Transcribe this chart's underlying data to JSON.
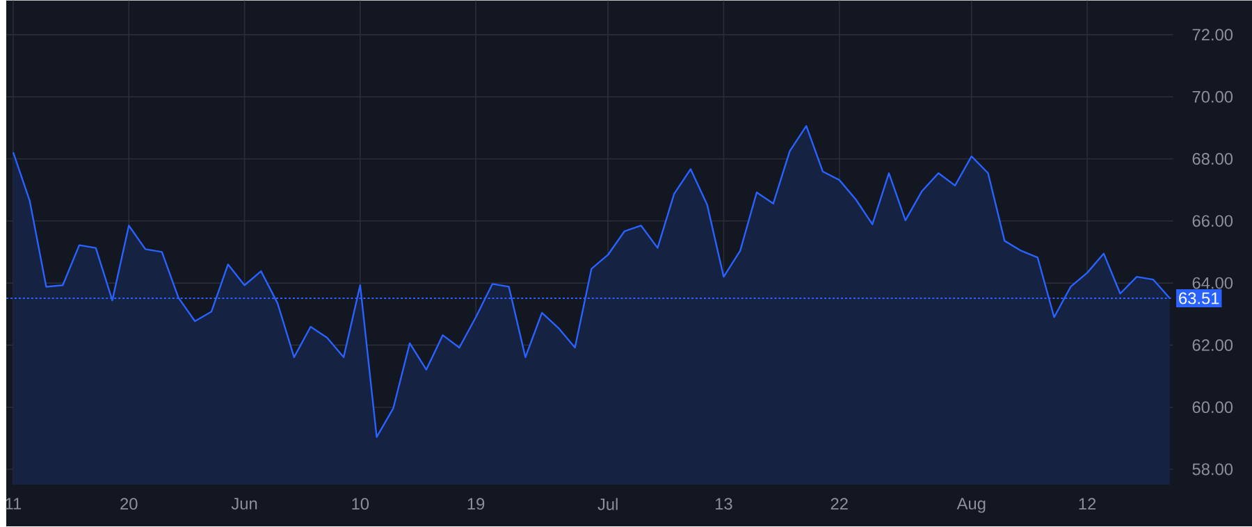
{
  "chart_data": {
    "type": "area",
    "categories": [
      "11",
      null,
      null,
      null,
      null,
      null,
      null,
      "20",
      null,
      null,
      null,
      null,
      null,
      null,
      "Jun",
      null,
      null,
      null,
      null,
      null,
      null,
      "10",
      null,
      null,
      null,
      null,
      null,
      null,
      "19",
      null,
      null,
      null,
      null,
      null,
      null,
      null,
      "Jul",
      null,
      null,
      null,
      null,
      null,
      null,
      "13",
      null,
      null,
      null,
      null,
      null,
      null,
      "22",
      null,
      null,
      null,
      null,
      null,
      null,
      null,
      "Aug",
      null,
      null,
      null,
      null,
      null,
      null,
      "12",
      null,
      null,
      null,
      null,
      null
    ],
    "series": [
      {
        "color": "#2962ff",
        "values": [
          68.21,
          66.65,
          63.88,
          63.93,
          65.22,
          65.13,
          63.44,
          65.85,
          65.09,
          65.0,
          63.53,
          62.77,
          63.08,
          64.6,
          63.93,
          64.38,
          63.35,
          61.61,
          62.59,
          62.24,
          61.61,
          63.93,
          59.04,
          59.96,
          62.06,
          61.21,
          62.32,
          61.92,
          62.9,
          63.97,
          63.88,
          61.61,
          63.04,
          62.55,
          61.92,
          64.46,
          64.91,
          65.67,
          65.85,
          65.13,
          66.87,
          67.67,
          66.52,
          64.2,
          65.04,
          66.92,
          66.56,
          68.25,
          69.06,
          67.59,
          67.32,
          66.69,
          65.89,
          67.54,
          66.02,
          66.96,
          67.54,
          67.14,
          68.08,
          67.54,
          65.36,
          65.04,
          64.82,
          62.9,
          63.88,
          64.33,
          64.95,
          63.66,
          64.2,
          64.11,
          63.51
        ]
      }
    ],
    "ylim": [
      57.5,
      73.1
    ],
    "yticks": [
      {
        "value": 58,
        "label": "58.00"
      },
      {
        "value": 60,
        "label": "60.00"
      },
      {
        "value": 62,
        "label": "62.00"
      },
      {
        "value": 64,
        "label": "64.00"
      },
      {
        "value": 66,
        "label": "66.00"
      },
      {
        "value": 68,
        "label": "68.00"
      },
      {
        "value": 70,
        "label": "70.00"
      },
      {
        "value": 72,
        "label": "72.00"
      }
    ],
    "ref_lines": [
      {
        "axis": "y",
        "value": 63.51,
        "label": "63.51",
        "color": "#2962ff",
        "line_style": "dotted"
      }
    ],
    "grid": true,
    "marker": "none",
    "line_style": "solid"
  }
}
